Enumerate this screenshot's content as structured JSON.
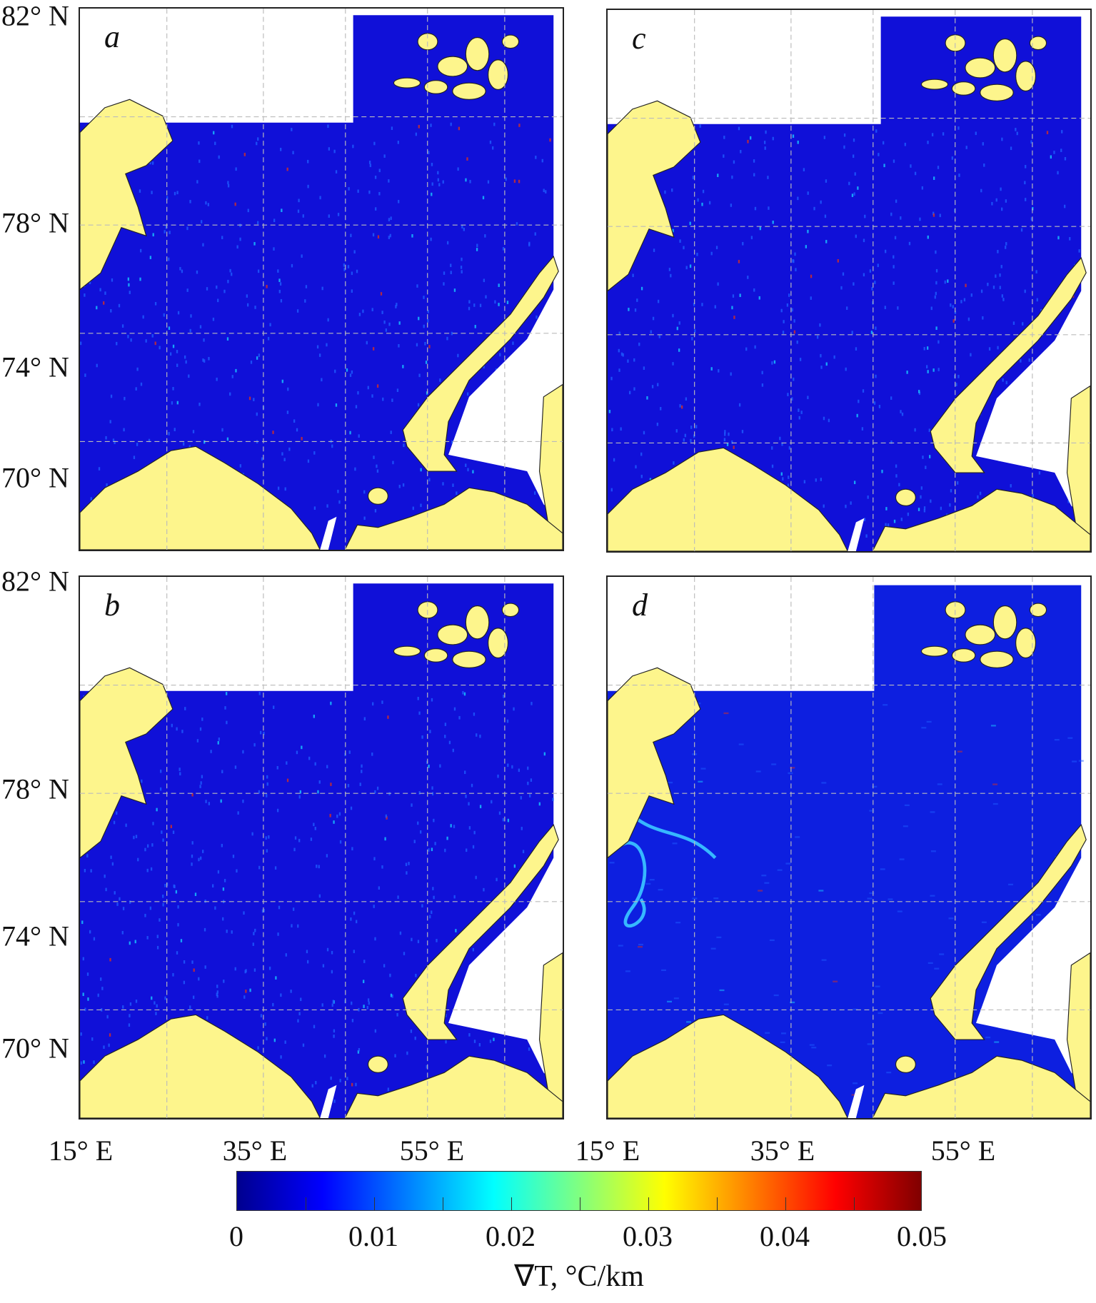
{
  "panels": [
    {
      "id": "a",
      "label": "a",
      "variant": "full"
    },
    {
      "id": "c",
      "label": "c",
      "variant": "full"
    },
    {
      "id": "b",
      "label": "b",
      "variant": "full"
    },
    {
      "id": "d",
      "label": "d",
      "variant": "smooth"
    }
  ],
  "y_axis_labels": {
    "top": [
      "82° N",
      "78° N",
      "74° N",
      "70° N"
    ],
    "bottom": [
      "82° N",
      "78° N",
      "74° N",
      "70° N"
    ]
  },
  "x_axis_labels": {
    "left": [
      "15° E",
      "35° E",
      "55° E"
    ],
    "right": [
      "15° E",
      "35° E",
      "55° E"
    ]
  },
  "colors": {
    "ocean": "#1010d8",
    "land": "#fdf58c",
    "nodata": "#ffffff"
  },
  "colorbar": {
    "min": 0,
    "max": 0.05,
    "tick_labels": [
      "0",
      "0.01",
      "0.02",
      "0.03",
      "0.04",
      "0.05"
    ],
    "minor_ticks": [
      0.005,
      0.01,
      0.015,
      0.02,
      0.025,
      0.03,
      0.035,
      0.04,
      0.045
    ],
    "title": "∇T, °C/km"
  }
}
